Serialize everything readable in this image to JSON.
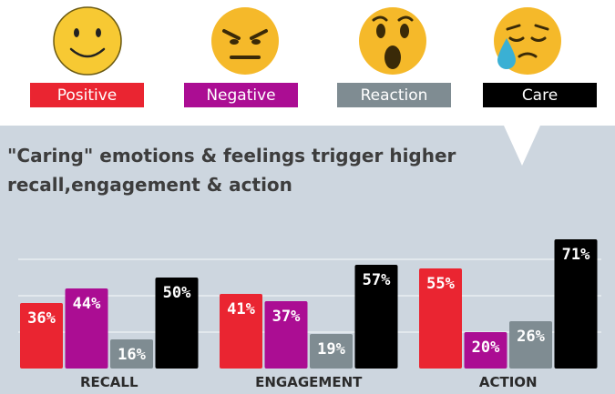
{
  "chart_data": {
    "type": "bar",
    "title": "\"Caring\" emotions & feelings trigger higher recall,engagement & action",
    "title_lines": [
      "\"Caring\" emotions & feelings trigger higher",
      "recall,engagement & action"
    ],
    "categories": [
      "RECALL",
      "ENGAGEMENT",
      "ACTION"
    ],
    "series": [
      {
        "name": "Positive",
        "values": [
          36,
          41,
          55
        ],
        "labels": [
          "36%",
          "41%",
          "55%"
        ]
      },
      {
        "name": "Negative",
        "values": [
          44,
          37,
          20
        ],
        "labels": [
          "44%",
          "37%",
          "20%"
        ]
      },
      {
        "name": "Reaction",
        "values": [
          16,
          19,
          26
        ],
        "labels": [
          "16%",
          "19%",
          "26%"
        ]
      },
      {
        "name": "Care",
        "values": [
          50,
          57,
          71
        ],
        "labels": [
          "50%",
          "57%",
          "71%"
        ]
      }
    ],
    "ylim": [
      0,
      80
    ],
    "grid": true,
    "legend_position": "top",
    "colors": {
      "Positive": "#ea2531",
      "Negative": "#ab0d93",
      "Reaction": "#7f8c92",
      "Care": "#000000",
      "panel": "#cdd6df",
      "emoji_face": "#f7c933"
    },
    "legend_icons": [
      "smiley-face-icon",
      "angry-face-icon",
      "surprised-face-icon",
      "crying-face-icon"
    ]
  }
}
